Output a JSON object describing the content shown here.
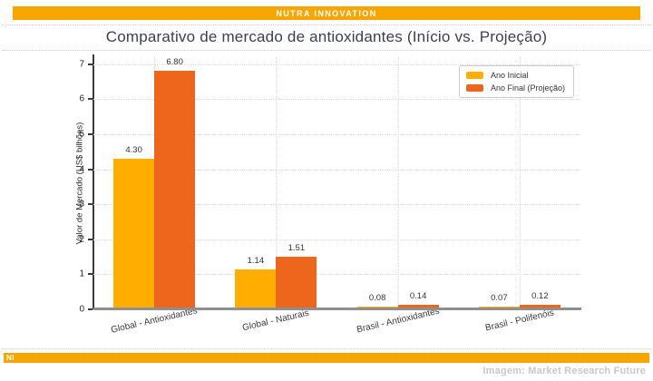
{
  "header": {
    "brand": "NUTRA INNOVATION"
  },
  "title": "Comparativo de mercado de antioxidantes (Início vs. Projeção)",
  "chart_data": {
    "type": "bar",
    "categories": [
      "Global - Antioxidantes",
      "Global - Naturais",
      "Brasil - Antioxidantes",
      "Brasil - Polifenóis"
    ],
    "series": [
      {
        "name": "Ano Inicial",
        "color": "#FFAE00",
        "values": [
          4.3,
          1.14,
          0.08,
          0.07
        ]
      },
      {
        "name": "Ano Final (Projeção)",
        "color": "#EE651C",
        "values": [
          6.8,
          1.51,
          0.14,
          0.12
        ]
      }
    ],
    "title": "Comparativo de mercado de antioxidantes (Início vs. Projeção)",
    "xlabel": "",
    "ylabel": "Valor de Mercado (US$ bilhões)",
    "yticks": [
      0,
      1,
      2,
      3,
      4,
      5,
      6,
      7
    ],
    "ylim": [
      0,
      7.2
    ],
    "grid": true,
    "legend_position": "upper right",
    "value_label_decimals": 2
  },
  "footer": {
    "brand_abbrev": "NI",
    "credit": "Imagem: Market Research Future"
  },
  "colors": {
    "brand_orange": "#F7A600",
    "series_initial": "#FFAE00",
    "series_final": "#EE651C",
    "title_text": "#3D3D52",
    "credit_text": "#C8C8C8",
    "grid": "#DCDCDC",
    "axis_dark": "#3A3A3A",
    "baseline_gray": "#8F8F8F"
  }
}
